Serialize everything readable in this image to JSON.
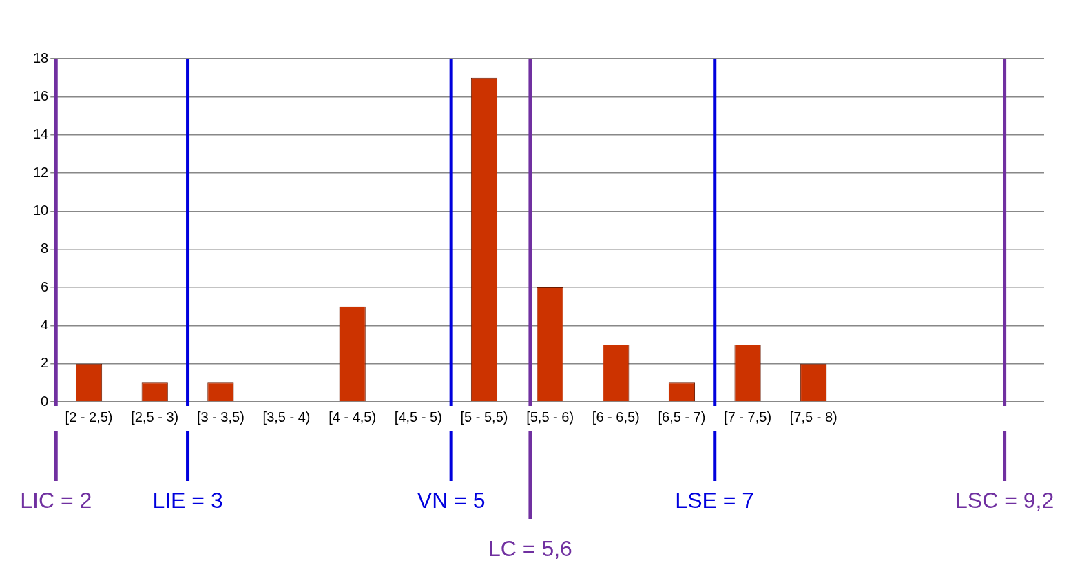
{
  "chart_data": {
    "type": "histogram",
    "bins": [
      2,
      2.5,
      3,
      3.5,
      4,
      4.5,
      5,
      5.5,
      6,
      6.5,
      7,
      7.5,
      8
    ],
    "values": [
      2,
      1,
      1,
      0,
      5,
      0,
      17,
      6,
      3,
      1,
      3,
      2
    ],
    "color": "#cc3300",
    "xlim": [
      2,
      9.5
    ],
    "categories": [
      "[2 - 2,5)",
      "[2,5 - 3)",
      "[3 - 3,5)",
      "[3,5 - 4)",
      "[4 - 4,5)",
      "[4,5 - 5)",
      "[5 - 5,5)",
      "[5,5 - 6)",
      "[6 - 6,5)",
      "[6,5 - 7)",
      "[7 - 7,5)",
      "[7,5 - 8)"
    ],
    "ylim": [
      0,
      18
    ],
    "yticks": [
      0,
      2,
      4,
      6,
      8,
      10,
      12,
      14,
      16,
      18
    ],
    "grid": "y",
    "ref_lines": [
      {
        "axis": "x",
        "value": 2,
        "label": "LIC = 2",
        "color": "#7030a0"
      },
      {
        "axis": "x",
        "value": 3,
        "label": "LIE = 3",
        "color": "#0000dd"
      },
      {
        "axis": "x",
        "value": 5,
        "label": "VN = 5",
        "color": "#0000dd"
      },
      {
        "axis": "x",
        "value": 5.6,
        "label": "LC = 5,6",
        "color": "#7030a0"
      },
      {
        "axis": "x",
        "value": 7,
        "label": "LSE = 7",
        "color": "#0000dd"
      },
      {
        "axis": "x",
        "value": 9.2,
        "label": "LSC = 9,2",
        "color": "#7030a0"
      }
    ]
  }
}
